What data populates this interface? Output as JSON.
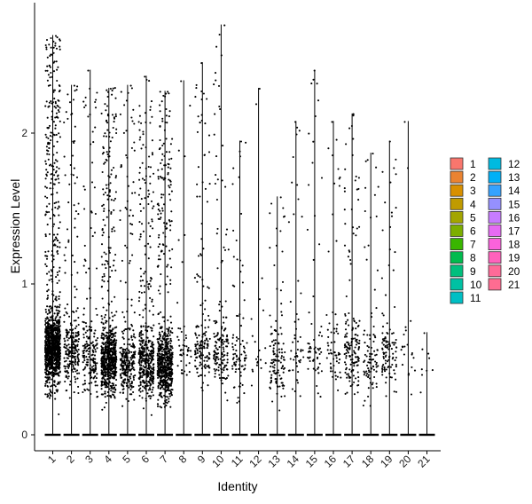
{
  "chart_data": {
    "type": "violin",
    "xlabel": "Identity",
    "ylabel": "Expression Level",
    "ylim": [
      -0.12,
      2.85
    ],
    "yticks": [
      0,
      1,
      2
    ],
    "grid": false,
    "legend_position": "right",
    "legend_columns": 2,
    "point_color": "#000000",
    "categories": [
      "1",
      "2",
      "3",
      "4",
      "5",
      "6",
      "7",
      "8",
      "9",
      "10",
      "11",
      "12",
      "13",
      "14",
      "15",
      "16",
      "17",
      "18",
      "19",
      "20",
      "21"
    ],
    "colors": [
      "#F8766D",
      "#EA8331",
      "#D89000",
      "#C09B00",
      "#A3A500",
      "#7CAE00",
      "#39B600",
      "#00BB4E",
      "#00BF7D",
      "#00C1A3",
      "#00BFC4",
      "#00BAE0",
      "#00B0F6",
      "#35A2FF",
      "#9590FF",
      "#C77CFF",
      "#E76BF3",
      "#FA62DB",
      "#FF62BC",
      "#FF6A98",
      "#FF6C91"
    ],
    "max_values": [
      2.65,
      2.32,
      2.42,
      2.3,
      2.32,
      2.38,
      2.28,
      2.35,
      2.47,
      2.72,
      1.95,
      2.3,
      1.58,
      2.08,
      2.42,
      2.08,
      2.13,
      1.87,
      1.95,
      2.08,
      0.68
    ],
    "density_center": [
      0.58,
      0.55,
      0.52,
      0.5,
      0.47,
      0.47,
      0.45,
      0.55,
      0.55,
      0.55,
      0.5,
      0.5,
      0.5,
      0.5,
      0.55,
      0.55,
      0.55,
      0.5,
      0.55,
      0.5,
      0.5
    ],
    "expressing_cells": [
      1200,
      260,
      200,
      700,
      280,
      450,
      650,
      45,
      160,
      160,
      90,
      20,
      120,
      50,
      60,
      60,
      160,
      90,
      110,
      20,
      8
    ]
  }
}
